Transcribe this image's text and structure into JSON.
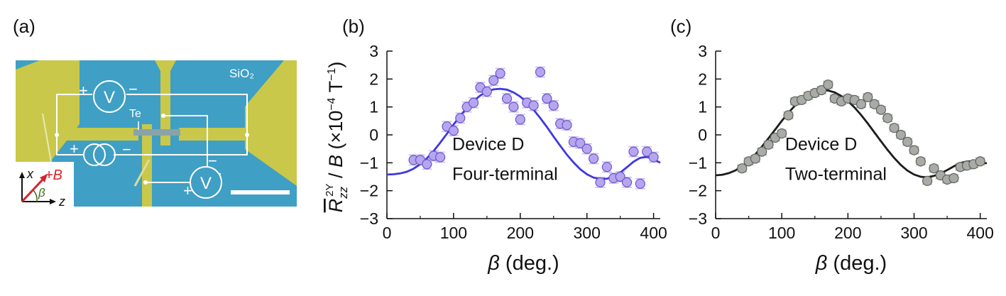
{
  "panels": {
    "a": "(a)",
    "b": "(b)",
    "c": "(c)"
  },
  "micrograph": {
    "substrate_label": "SiO₂",
    "te_label": "Te",
    "plus": "+",
    "minus": "−",
    "voltmeter": "V",
    "field_axis_x": "x",
    "field_axis_z": "z",
    "field_label": "+B",
    "angle_label": "β",
    "colors": {
      "substrate": "#3f9fc4",
      "electrode": "#c9c84a",
      "wire": "#ffffff",
      "field_arrow": "#d8232a",
      "angle_arc": "#3f6e1e"
    }
  },
  "ylabel": "R̅zz2Y / B (×10⁻⁴ T⁻¹)",
  "chart_data": [
    {
      "type": "scatter",
      "xlabel": "β (deg.)",
      "xlim": [
        0,
        410
      ],
      "ylim": [
        -3,
        3
      ],
      "xticks": [
        0,
        100,
        200,
        300,
        400
      ],
      "yticks": [
        -3,
        -2,
        -1,
        0,
        1,
        2,
        3
      ],
      "annotation": [
        "Device D",
        "Four-terminal"
      ],
      "marker_color": "#b7a6ef",
      "marker_edge": "#6a57c9",
      "errorbar_color": "#cbbcf3",
      "fit_color": "#3f39e0",
      "error": 0.18,
      "points": {
        "x": [
          40,
          50,
          60,
          70,
          80,
          90,
          100,
          110,
          120,
          130,
          140,
          150,
          160,
          170,
          180,
          190,
          200,
          210,
          220,
          230,
          240,
          250,
          260,
          270,
          280,
          290,
          300,
          310,
          320,
          330,
          340,
          350,
          360,
          370,
          380,
          390,
          400
        ],
        "y": [
          -0.9,
          -0.9,
          -1.05,
          -0.75,
          -0.8,
          0.3,
          0.15,
          0.6,
          1.0,
          1.15,
          1.7,
          1.55,
          1.95,
          2.2,
          1.3,
          1.0,
          0.55,
          1.15,
          1.05,
          2.25,
          1.3,
          1.05,
          0.4,
          0.35,
          -0.25,
          -0.3,
          -0.5,
          -0.85,
          -1.7,
          -1.15,
          -1.55,
          -1.5,
          -1.7,
          -0.6,
          -1.75,
          -0.6,
          -0.8
        ]
      },
      "fit": {
        "x": [
          0,
          10,
          20,
          30,
          40,
          50,
          60,
          70,
          80,
          90,
          100,
          110,
          120,
          130,
          140,
          150,
          160,
          170,
          180,
          190,
          200,
          210,
          220,
          230,
          240,
          250,
          260,
          270,
          280,
          290,
          300,
          310,
          320,
          330,
          340,
          350,
          360,
          370,
          380,
          390,
          400,
          410
        ],
        "y": [
          -1.42,
          -1.41,
          -1.38,
          -1.32,
          -1.21,
          -1.05,
          -0.84,
          -0.58,
          -0.28,
          0.04,
          0.37,
          0.68,
          0.97,
          1.21,
          1.41,
          1.55,
          1.63,
          1.65,
          1.62,
          1.52,
          1.37,
          1.16,
          0.9,
          0.6,
          0.28,
          -0.06,
          -0.39,
          -0.71,
          -0.99,
          -1.23,
          -1.41,
          -1.53,
          -1.58,
          -1.57,
          -1.49,
          -1.35,
          -1.16,
          -0.96,
          -0.82,
          -0.79,
          -0.87,
          -1.0
        ]
      }
    },
    {
      "type": "scatter",
      "xlabel": "β (deg.)",
      "xlim": [
        0,
        410
      ],
      "ylim": [
        -3,
        3
      ],
      "xticks": [
        0,
        100,
        200,
        300,
        400
      ],
      "yticks": [
        -3,
        -2,
        -1,
        0,
        1,
        2,
        3
      ],
      "annotation": [
        "Device D",
        "Two-terminal"
      ],
      "marker_color": "#a9aca6",
      "marker_edge": "#5f6260",
      "errorbar_color": "#b4b6b2",
      "fit_color": "#1c1c1c",
      "error": 0.12,
      "points": {
        "x": [
          40,
          50,
          60,
          70,
          80,
          90,
          100,
          110,
          120,
          130,
          140,
          150,
          160,
          170,
          180,
          190,
          200,
          210,
          220,
          230,
          240,
          250,
          260,
          270,
          280,
          290,
          300,
          310,
          320,
          330,
          340,
          350,
          360,
          370,
          380,
          390,
          400
        ],
        "y": [
          -1.2,
          -0.95,
          -0.85,
          -0.6,
          -0.35,
          -0.1,
          0.05,
          0.7,
          1.2,
          1.25,
          1.4,
          1.5,
          1.6,
          1.8,
          1.3,
          1.2,
          1.3,
          1.25,
          1.1,
          1.35,
          1.1,
          0.9,
          0.6,
          0.25,
          0.0,
          -0.25,
          -0.55,
          -0.95,
          -1.65,
          -1.2,
          -1.45,
          -1.6,
          -1.55,
          -1.15,
          -1.1,
          -1.05,
          -0.95
        ]
      },
      "fit": {
        "x": [
          0,
          10,
          20,
          30,
          40,
          50,
          60,
          70,
          80,
          90,
          100,
          110,
          120,
          130,
          140,
          150,
          160,
          170,
          180,
          190,
          200,
          210,
          220,
          230,
          240,
          250,
          260,
          270,
          280,
          290,
          300,
          310,
          320,
          330,
          340,
          350,
          360,
          370,
          380,
          390,
          400,
          410
        ],
        "y": [
          -1.45,
          -1.43,
          -1.37,
          -1.27,
          -1.12,
          -0.93,
          -0.7,
          -0.42,
          -0.12,
          0.19,
          0.5,
          0.79,
          1.05,
          1.27,
          1.44,
          1.55,
          1.6,
          1.59,
          1.52,
          1.39,
          1.21,
          0.98,
          0.71,
          0.41,
          0.09,
          -0.23,
          -0.54,
          -0.83,
          -1.08,
          -1.28,
          -1.42,
          -1.5,
          -1.52,
          -1.47,
          -1.38,
          -1.26,
          -1.13,
          -1.01,
          -0.95,
          -0.95,
          -0.98,
          -1.02
        ]
      }
    }
  ]
}
